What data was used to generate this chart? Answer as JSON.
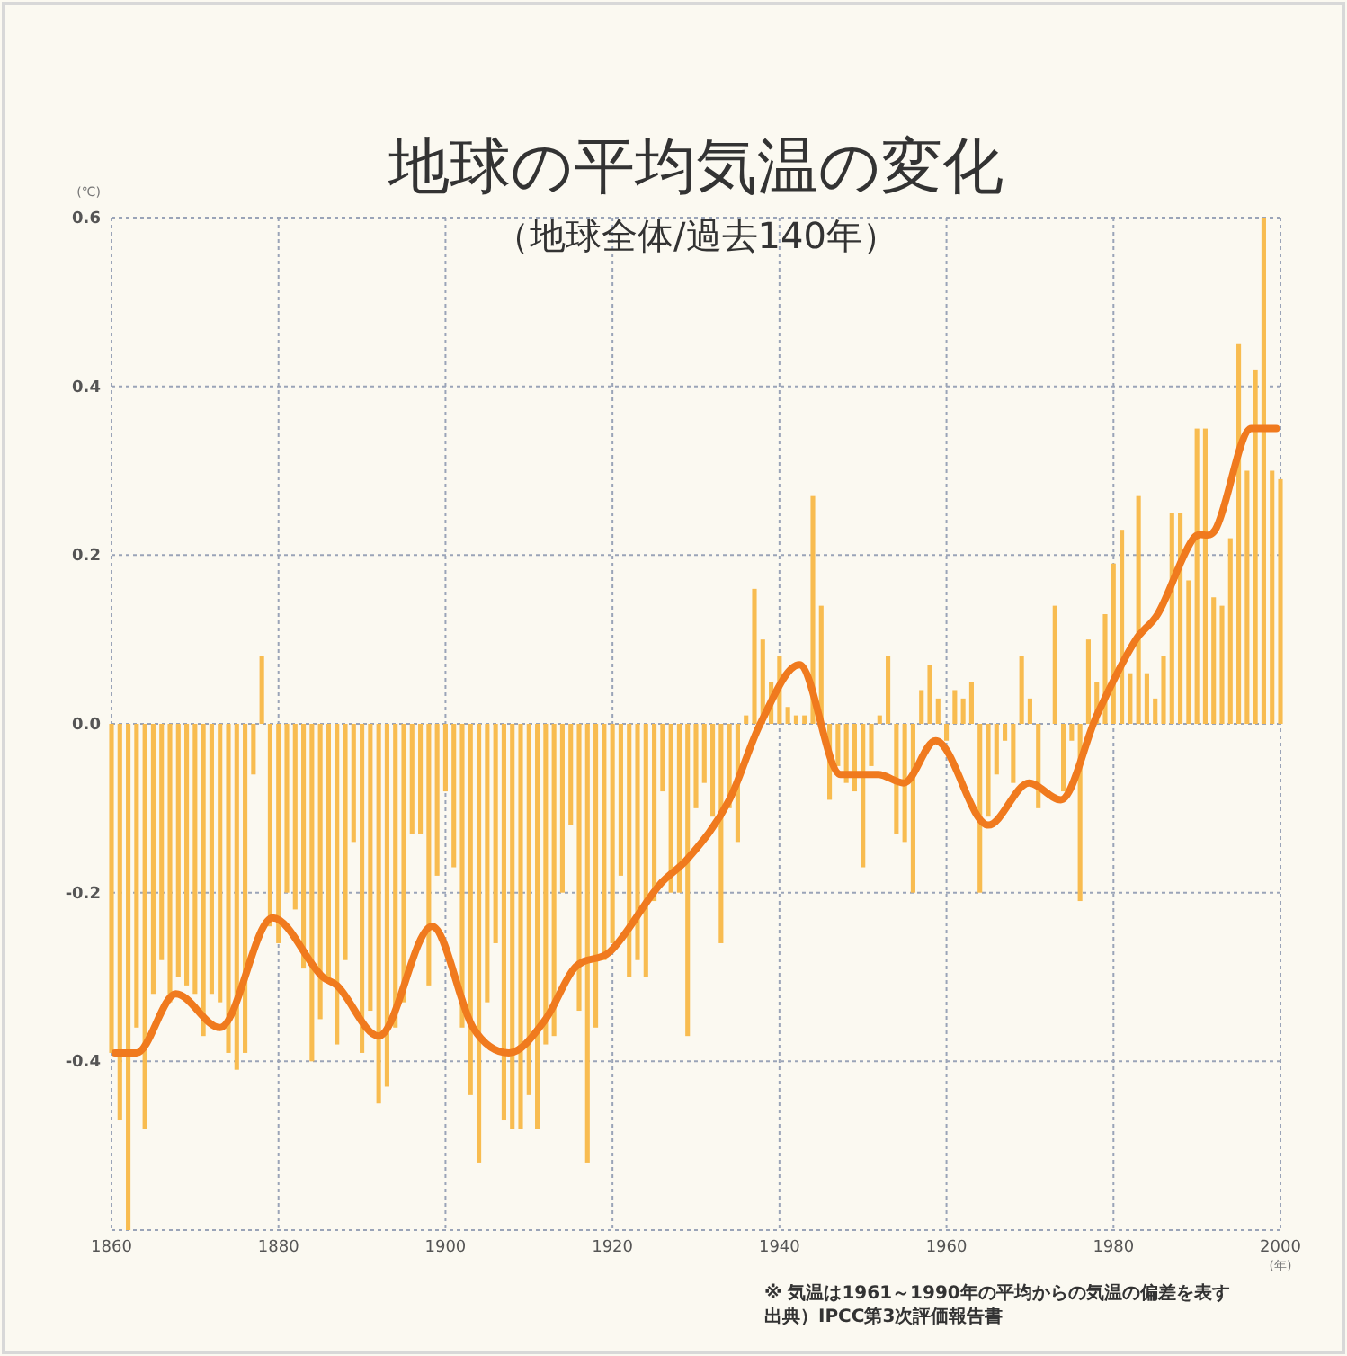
{
  "chart_data": {
    "type": "bar",
    "title": "地球の平均気温の変化",
    "subtitle": "（地球全体/過去140年）",
    "xlabel": "(年)",
    "ylabel": "(℃)",
    "x": [
      1860,
      1861,
      1862,
      1863,
      1864,
      1865,
      1866,
      1867,
      1868,
      1869,
      1870,
      1871,
      1872,
      1873,
      1874,
      1875,
      1876,
      1877,
      1878,
      1879,
      1880,
      1881,
      1882,
      1883,
      1884,
      1885,
      1886,
      1887,
      1888,
      1889,
      1890,
      1891,
      1892,
      1893,
      1894,
      1895,
      1896,
      1897,
      1898,
      1899,
      1900,
      1901,
      1902,
      1903,
      1904,
      1905,
      1906,
      1907,
      1908,
      1909,
      1910,
      1911,
      1912,
      1913,
      1914,
      1915,
      1916,
      1917,
      1918,
      1919,
      1920,
      1921,
      1922,
      1923,
      1924,
      1925,
      1926,
      1927,
      1928,
      1929,
      1930,
      1931,
      1932,
      1933,
      1934,
      1935,
      1936,
      1937,
      1938,
      1939,
      1940,
      1941,
      1942,
      1943,
      1944,
      1945,
      1946,
      1947,
      1948,
      1949,
      1950,
      1951,
      1952,
      1953,
      1954,
      1955,
      1956,
      1957,
      1958,
      1959,
      1960,
      1961,
      1962,
      1963,
      1964,
      1965,
      1966,
      1967,
      1968,
      1969,
      1970,
      1971,
      1972,
      1973,
      1974,
      1975,
      1976,
      1977,
      1978,
      1979,
      1980,
      1981,
      1982,
      1983,
      1984,
      1985,
      1986,
      1987,
      1988,
      1989,
      1990,
      1991,
      1992,
      1993,
      1994,
      1995,
      1996,
      1997,
      1998,
      1999,
      2000
    ],
    "series": [
      {
        "color": "#f8bc50",
        "values": [
          -0.39,
          -0.47,
          -0.6,
          -0.36,
          -0.48,
          -0.32,
          -0.28,
          -0.33,
          -0.3,
          -0.31,
          -0.32,
          -0.37,
          -0.32,
          -0.33,
          -0.39,
          -0.41,
          -0.39,
          -0.06,
          0.08,
          -0.24,
          -0.26,
          -0.2,
          -0.22,
          -0.29,
          -0.4,
          -0.35,
          -0.3,
          -0.38,
          -0.28,
          -0.14,
          -0.39,
          -0.34,
          -0.45,
          -0.43,
          -0.36,
          -0.33,
          -0.13,
          -0.13,
          -0.31,
          -0.18,
          -0.08,
          -0.17,
          -0.36,
          -0.44,
          -0.52,
          -0.33,
          -0.26,
          -0.47,
          -0.48,
          -0.48,
          -0.44,
          -0.48,
          -0.38,
          -0.37,
          -0.2,
          -0.12,
          -0.34,
          -0.52,
          -0.36,
          -0.28,
          -0.26,
          -0.18,
          -0.3,
          -0.28,
          -0.3,
          -0.21,
          -0.08,
          -0.2,
          -0.2,
          -0.37,
          -0.1,
          -0.07,
          -0.11,
          -0.26,
          -0.1,
          -0.14,
          0.01,
          0.16,
          0.1,
          0.05,
          0.08,
          0.02,
          0.01,
          0.01,
          0.27,
          0.14,
          -0.09,
          -0.05,
          -0.07,
          -0.08,
          -0.17,
          -0.05,
          0.01,
          0.08,
          -0.13,
          -0.14,
          -0.2,
          0.04,
          0.07,
          0.03,
          -0.02,
          0.04,
          0.03,
          0.05,
          -0.2,
          -0.11,
          -0.06,
          -0.02,
          -0.07,
          0.08,
          0.03,
          -0.1,
          0.0,
          0.14,
          -0.08,
          -0.02,
          -0.21,
          0.1,
          0.05,
          0.13,
          0.19,
          0.23,
          0.06,
          0.27,
          0.06,
          0.03,
          0.08,
          0.25,
          0.25,
          0.17,
          0.35,
          0.35,
          0.15,
          0.14,
          0.22,
          0.45,
          0.3,
          0.42,
          0.6,
          0.3,
          0.29
        ]
      },
      {
        "type": "line",
        "color": "#f07a1e",
        "x": [
          1860.4,
          1863,
          1867.7,
          1873,
          1879.3,
          1885.3,
          1887,
          1892,
          1898.4,
          1903.3,
          1907.6,
          1912,
          1915.4,
          1919.7,
          1925.7,
          1929,
          1934,
          1937.7,
          1942.4,
          1947.3,
          1951.8,
          1954.9,
          1958.7,
          1965,
          1969.9,
          1973.7,
          1978,
          1982.7,
          1985.3,
          1989.6,
          1992.2,
          1996.5,
          1999.5
        ],
        "values": [
          -0.39,
          -0.39,
          -0.32,
          -0.36,
          -0.23,
          -0.3,
          -0.31,
          -0.37,
          -0.24,
          -0.36,
          -0.39,
          -0.35,
          -0.29,
          -0.27,
          -0.19,
          -0.16,
          -0.09,
          0.0,
          0.07,
          -0.06,
          -0.06,
          -0.07,
          -0.02,
          -0.12,
          -0.07,
          -0.09,
          0.01,
          0.1,
          0.13,
          0.22,
          0.23,
          0.35,
          0.35
        ]
      }
    ],
    "xlim": [
      1860,
      2000
    ],
    "xticks": [
      1860,
      1880,
      1900,
      1920,
      1940,
      1960,
      1980,
      2000
    ],
    "ylim": [
      -0.6,
      0.6
    ],
    "yticks": [
      {
        "value": -0.6,
        "label": null
      },
      {
        "value": -0.4,
        "label": "-0.4"
      },
      {
        "value": -0.2,
        "label": "-0.2"
      },
      {
        "value": 0,
        "label": "0.0"
      },
      {
        "value": 0.2,
        "label": "0.2"
      },
      {
        "value": 0.4,
        "label": "0.4"
      },
      {
        "value": 0.6,
        "label": "0.6"
      }
    ],
    "grid": true,
    "annotations": [
      "※ 気温は1961～1990年の平均からの気温の偏差を表す",
      "出典）IPCC第3次評価報告書"
    ]
  }
}
